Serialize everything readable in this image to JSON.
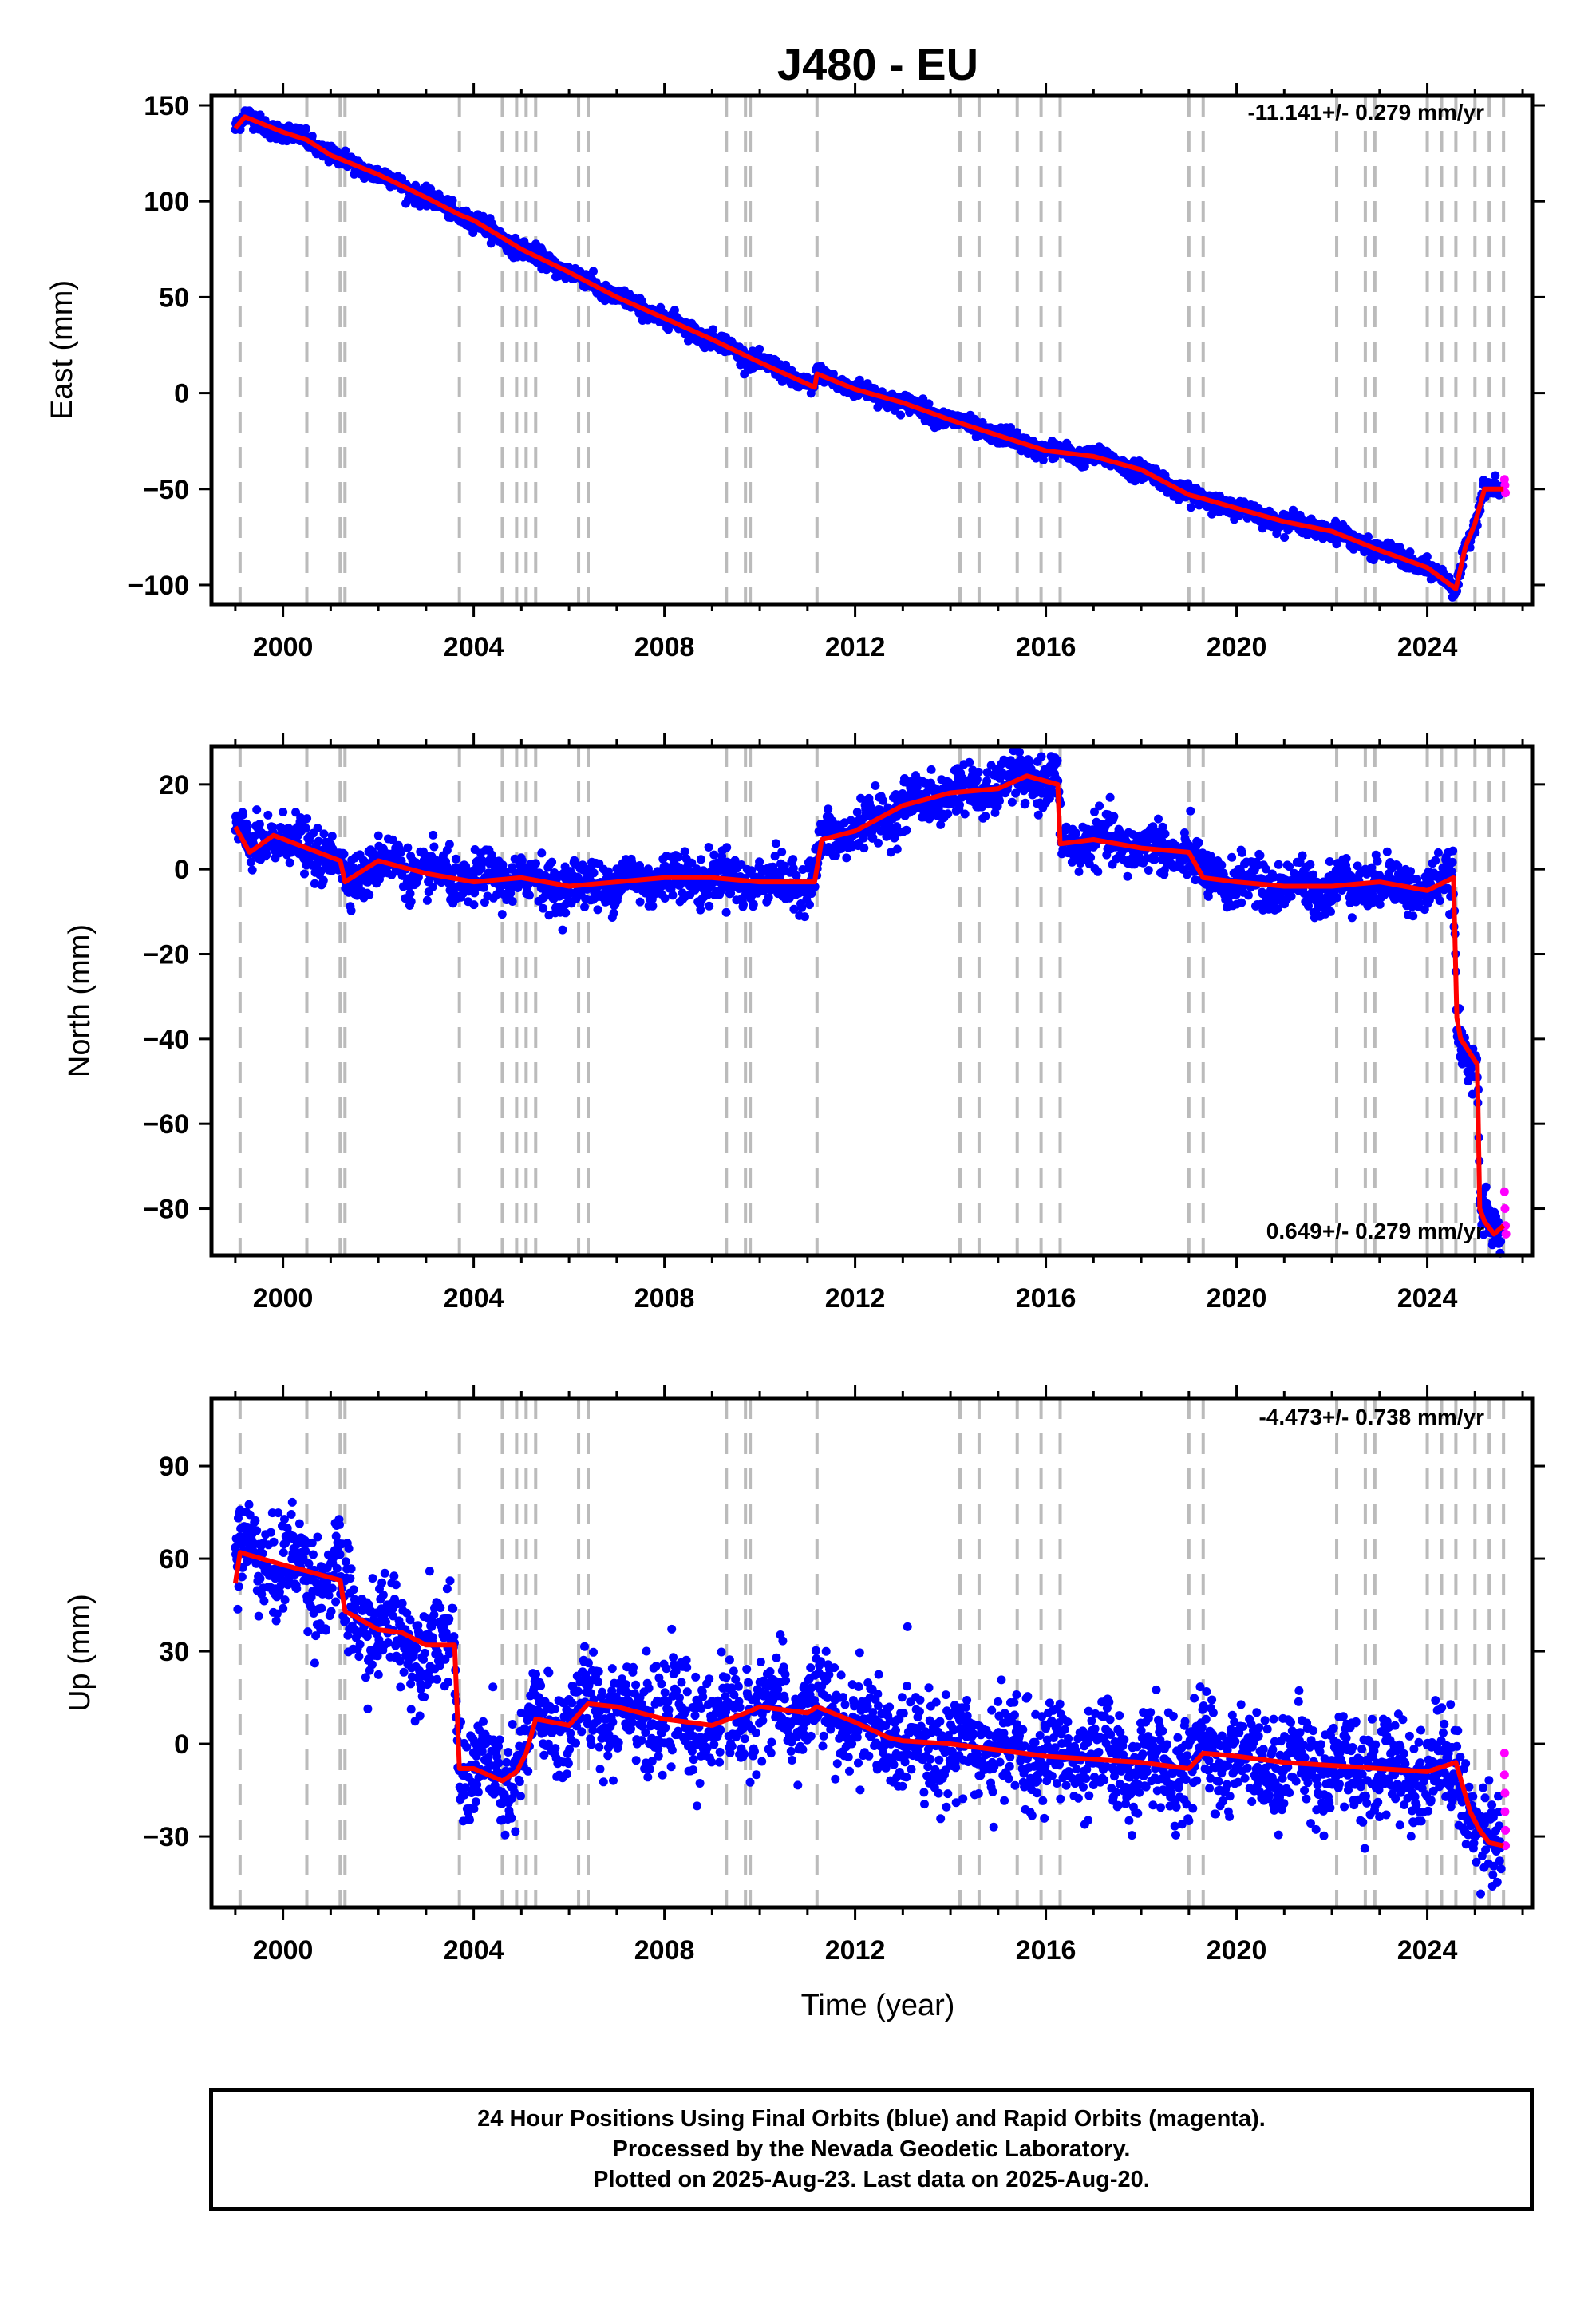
{
  "figure": {
    "title": "J480 - EU",
    "xlabel": "Time (year)"
  },
  "colors": {
    "final_orbits": "#0000ff",
    "rapid_orbits": "#ff00ff",
    "model": "#ff0000",
    "event_lines": "#bbbbbb"
  },
  "footer": {
    "line1": "24 Hour Positions Using Final Orbits (blue) and Rapid Orbits (magenta).",
    "line2": "Processed by the Nevada Geodetic Laboratory.",
    "line3": "Plotted on 2025-Aug-23. Last data on 2025-Aug-20."
  },
  "chart_data": [
    {
      "type": "scatter",
      "panel": "east",
      "ylabel": "East (mm)",
      "rate_text": "-11.141+/- 0.279 mm/yr",
      "xlim": [
        1998.5,
        2026.2
      ],
      "ylim": [
        -110,
        155
      ],
      "x_ticks": [
        2000,
        2004,
        2008,
        2012,
        2016,
        2020,
        2024
      ],
      "y_ticks": [
        -100,
        -50,
        0,
        50,
        100,
        150
      ],
      "event_years": [
        1999.1,
        2000.5,
        2001.2,
        2001.3,
        2003.7,
        2004.6,
        2004.9,
        2005.1,
        2005.3,
        2006.2,
        2006.4,
        2009.3,
        2009.7,
        2009.8,
        2011.2,
        2014.2,
        2014.6,
        2015.4,
        2015.9,
        2016.3,
        2019.0,
        2019.3,
        2022.1,
        2022.7,
        2022.9,
        2024.0,
        2024.3,
        2024.6,
        2025.0,
        2025.3,
        2025.6
      ],
      "model": {
        "x": [
          1999.0,
          1999.2,
          2000.0,
          2000.5,
          2001.0,
          2002.0,
          2003.0,
          2003.7,
          2004.0,
          2005.0,
          2006.0,
          2007.0,
          2008.0,
          2009.0,
          2010.0,
          2011.15,
          2011.2,
          2012.0,
          2013.0,
          2014.0,
          2015.0,
          2016.0,
          2017.0,
          2018.0,
          2019.0,
          2019.3,
          2020.0,
          2021.0,
          2022.0,
          2023.0,
          2024.0,
          2024.6,
          2024.8,
          2025.0,
          2025.2,
          2025.6
        ],
        "y": [
          138,
          144,
          136,
          132,
          124,
          114,
          102,
          93,
          90,
          75,
          63,
          50,
          39,
          28,
          16,
          3,
          10,
          2,
          -5,
          -14,
          -22,
          -30,
          -33,
          -40,
          -53,
          -55,
          -60,
          -67,
          -72,
          -82,
          -91,
          -102,
          -80,
          -68,
          -50,
          -50
        ]
      },
      "observations": {
        "t_start": 1999.0,
        "t_end": 2025.55,
        "noise": 2.2,
        "rapid": {
          "x": [
            2025.62,
            2025.63,
            2025.64
          ],
          "y": [
            -45,
            -48,
            -52
          ]
        }
      }
    },
    {
      "type": "scatter",
      "panel": "north",
      "ylabel": "North (mm)",
      "rate_text": "0.649+/- 0.279 mm/yr",
      "xlim": [
        1998.5,
        2026.2
      ],
      "ylim": [
        -91,
        29
      ],
      "x_ticks": [
        2000,
        2004,
        2008,
        2012,
        2016,
        2020,
        2024
      ],
      "y_ticks": [
        -80,
        -60,
        -40,
        -20,
        0,
        20
      ],
      "event_years": [
        1999.1,
        2000.5,
        2001.2,
        2001.3,
        2003.7,
        2004.6,
        2004.9,
        2005.1,
        2005.3,
        2006.2,
        2006.4,
        2009.3,
        2009.7,
        2009.8,
        2011.2,
        2014.2,
        2014.6,
        2015.4,
        2015.9,
        2016.3,
        2019.0,
        2019.3,
        2022.1,
        2022.7,
        2022.9,
        2024.0,
        2024.3,
        2024.6,
        2025.0,
        2025.3,
        2025.6
      ],
      "model": {
        "x": [
          1999.0,
          1999.3,
          1999.8,
          2000.5,
          2001.2,
          2001.3,
          2002.0,
          2003.0,
          2004.0,
          2005.0,
          2006.0,
          2007.0,
          2008.0,
          2009.0,
          2010.0,
          2011.15,
          2011.3,
          2012.0,
          2013.0,
          2014.0,
          2015.0,
          2015.6,
          2016.25,
          2016.3,
          2017.0,
          2018.0,
          2019.0,
          2019.3,
          2020.0,
          2021.0,
          2022.0,
          2023.0,
          2024.0,
          2024.55,
          2024.62,
          2024.7,
          2025.05,
          2025.1,
          2025.2,
          2025.4,
          2025.6
        ],
        "y": [
          10,
          4,
          8,
          5,
          2,
          -3,
          2,
          -1,
          -3,
          -2,
          -4,
          -3,
          -2,
          -2,
          -3,
          -3,
          7,
          9,
          15,
          18,
          19,
          22,
          20,
          6,
          7,
          5,
          4,
          -2,
          -3,
          -4,
          -4,
          -3,
          -5,
          -2,
          -35,
          -40,
          -46,
          -80,
          -83,
          -86,
          -84
        ]
      },
      "observations": {
        "t_start": 1999.0,
        "t_end": 2025.55,
        "noise": 2.8,
        "rapid": {
          "x": [
            2025.62,
            2025.63,
            2025.64,
            2025.65
          ],
          "y": [
            -76,
            -80,
            -84,
            -86
          ]
        }
      }
    },
    {
      "type": "scatter",
      "panel": "up",
      "ylabel": "Up (mm)",
      "rate_text": "-4.473+/- 0.738 mm/yr",
      "xlim": [
        1998.5,
        2026.2
      ],
      "ylim": [
        -53,
        112
      ],
      "x_ticks": [
        2000,
        2004,
        2008,
        2012,
        2016,
        2020,
        2024
      ],
      "y_ticks": [
        -30,
        0,
        30,
        60,
        90
      ],
      "event_years": [
        1999.1,
        2000.5,
        2001.2,
        2001.3,
        2003.7,
        2004.6,
        2004.9,
        2005.1,
        2005.3,
        2006.2,
        2006.4,
        2009.3,
        2009.7,
        2009.8,
        2011.2,
        2014.2,
        2014.6,
        2015.4,
        2015.9,
        2016.3,
        2019.0,
        2019.3,
        2022.1,
        2022.7,
        2022.9,
        2024.0,
        2024.3,
        2024.6,
        2025.0,
        2025.3,
        2025.6
      ],
      "model": {
        "x": [
          1999.0,
          1999.1,
          2000.0,
          2000.5,
          2001.2,
          2001.3,
          2002.0,
          2002.5,
          2003.0,
          2003.6,
          2003.7,
          2004.0,
          2004.6,
          2004.9,
          2005.1,
          2005.3,
          2006.0,
          2006.4,
          2007.0,
          2008.0,
          2009.0,
          2009.7,
          2010.0,
          2011.0,
          2011.2,
          2012.0,
          2012.7,
          2013.0,
          2014.0,
          2015.0,
          2016.0,
          2017.0,
          2018.0,
          2019.0,
          2019.3,
          2020.0,
          2021.0,
          2022.0,
          2023.0,
          2024.0,
          2024.6,
          2024.9,
          2025.1,
          2025.3,
          2025.6
        ],
        "y": [
          52,
          62,
          58,
          56,
          53,
          43,
          37,
          36,
          32,
          32,
          -8,
          -8,
          -12,
          -9,
          -3,
          8,
          6,
          13,
          12,
          8,
          6,
          10,
          12,
          10,
          12,
          7,
          2,
          1,
          0,
          -2,
          -4,
          -5,
          -6,
          -8,
          -3,
          -4,
          -6,
          -7,
          -8,
          -9,
          -6,
          -22,
          -28,
          -32,
          -33
        ]
      },
      "observations": {
        "t_start": 1999.0,
        "t_end": 2025.55,
        "noise": 8.0,
        "rapid": {
          "x": [
            2025.62,
            2025.62,
            2025.63,
            2025.63,
            2025.64,
            2025.64
          ],
          "y": [
            -3,
            -10,
            -16,
            -22,
            -28,
            -33
          ]
        }
      }
    }
  ]
}
